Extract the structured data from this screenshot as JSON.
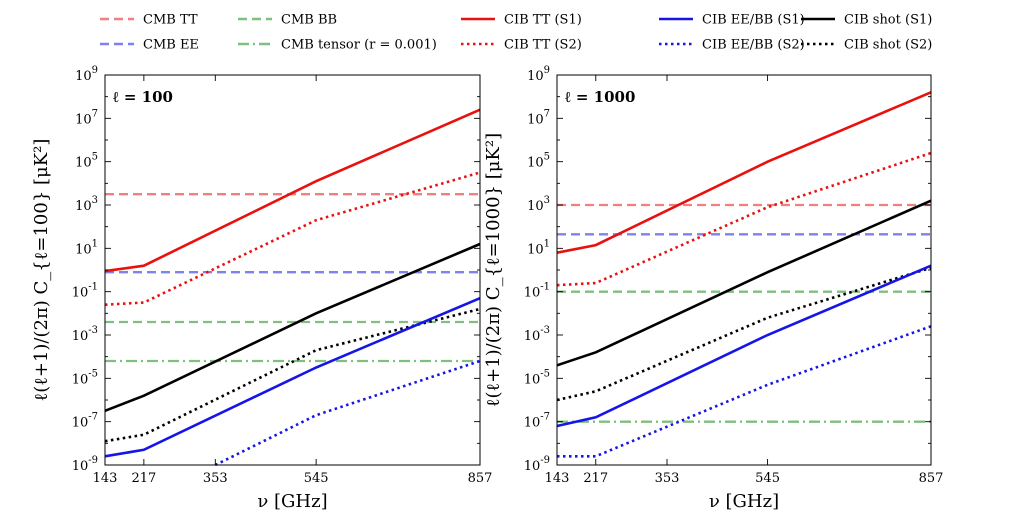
{
  "chart_data": {
    "type": "line",
    "figure_title": "",
    "x_ticks": [
      143,
      217,
      353,
      545,
      857
    ],
    "xlim": [
      143,
      857
    ],
    "ylim_exponent": [
      -9,
      9
    ],
    "y_tick_base": "10",
    "y_tick_exponents": [
      -9,
      -7,
      -5,
      -3,
      -1,
      1,
      3,
      5,
      7,
      9
    ],
    "xlabel": "ν [GHz]",
    "legend": [
      {
        "id": "cmb_tt",
        "label": "CMB TT",
        "color": "#f08080",
        "dash": "dashed"
      },
      {
        "id": "cmb_ee",
        "label": "CMB EE",
        "color": "#8080f0",
        "dash": "dashed"
      },
      {
        "id": "cmb_bb",
        "label": "CMB BB",
        "color": "#7fbf7f",
        "dash": "dashed"
      },
      {
        "id": "cmb_tensor",
        "label": "CMB tensor (r = 0.001)",
        "color": "#7fbf7f",
        "dash": "dashdot"
      },
      {
        "id": "cib_tt_s1",
        "label": "CIB TT (S1)",
        "color": "#e8110f",
        "dash": "solid"
      },
      {
        "id": "cib_tt_s2",
        "label": "CIB TT (S2)",
        "color": "#e8110f",
        "dash": "dotted"
      },
      {
        "id": "cib_eebb_s1",
        "label": "CIB EE/BB (S1)",
        "color": "#1515e8",
        "dash": "solid"
      },
      {
        "id": "cib_eebb_s2",
        "label": "CIB EE/BB (S2)",
        "color": "#1515e8",
        "dash": "dotted"
      },
      {
        "id": "cib_shot_s1",
        "label": "CIB shot (S1)",
        "color": "#000000",
        "dash": "solid"
      },
      {
        "id": "cib_shot_s2",
        "label": "CIB shot (S2)",
        "color": "#000000",
        "dash": "dotted"
      }
    ],
    "panels": [
      {
        "ell_label": "ℓ = 100",
        "ylabel": "ℓ(ℓ+1)/(2π) C_{ℓ=100} [μK²]",
        "series": [
          {
            "id": "cmb_tt",
            "x": [
              143,
              857
            ],
            "log10_y": [
              3.5,
              3.5
            ]
          },
          {
            "id": "cmb_ee",
            "x": [
              143,
              857
            ],
            "log10_y": [
              -0.1,
              -0.1
            ]
          },
          {
            "id": "cmb_bb",
            "x": [
              143,
              857
            ],
            "log10_y": [
              -2.4,
              -2.4
            ]
          },
          {
            "id": "cmb_tensor",
            "x": [
              143,
              857
            ],
            "log10_y": [
              -4.2,
              -4.2
            ]
          },
          {
            "id": "cib_tt_s1",
            "x": [
              143,
              217,
              545,
              857
            ],
            "log10_y": [
              -0.05,
              0.2,
              4.1,
              7.4
            ]
          },
          {
            "id": "cib_tt_s2",
            "x": [
              143,
              217,
              545,
              857
            ],
            "log10_y": [
              -1.6,
              -1.5,
              2.3,
              4.5
            ]
          },
          {
            "id": "cib_shot_s1",
            "x": [
              143,
              217,
              545,
              857
            ],
            "log10_y": [
              -6.5,
              -5.8,
              -2.0,
              1.2
            ]
          },
          {
            "id": "cib_shot_s2",
            "x": [
              143,
              217,
              545,
              857
            ],
            "log10_y": [
              -7.9,
              -7.6,
              -3.7,
              -1.8
            ]
          },
          {
            "id": "cib_eebb_s1",
            "x": [
              143,
              217,
              545,
              857
            ],
            "log10_y": [
              -8.6,
              -8.3,
              -4.5,
              -1.3
            ]
          },
          {
            "id": "cib_eebb_s2",
            "x": [
              353,
              545,
              857
            ],
            "log10_y": [
              -9.0,
              -6.7,
              -4.2
            ]
          }
        ]
      },
      {
        "ell_label": "ℓ = 1000",
        "ylabel": "ℓ(ℓ+1)/(2π) C_{ℓ=1000} [μK²]",
        "series": [
          {
            "id": "cmb_tt",
            "x": [
              143,
              857
            ],
            "log10_y": [
              3.0,
              3.0
            ]
          },
          {
            "id": "cmb_ee",
            "x": [
              143,
              857
            ],
            "log10_y": [
              1.65,
              1.65
            ]
          },
          {
            "id": "cmb_bb",
            "x": [
              143,
              857
            ],
            "log10_y": [
              -1.0,
              -1.0
            ]
          },
          {
            "id": "cmb_tensor",
            "x": [
              143,
              857
            ],
            "log10_y": [
              -7.0,
              -7.0
            ]
          },
          {
            "id": "cib_tt_s1",
            "x": [
              143,
              217,
              545,
              857
            ],
            "log10_y": [
              0.8,
              1.15,
              5.0,
              8.2
            ]
          },
          {
            "id": "cib_tt_s2",
            "x": [
              143,
              217,
              545,
              857
            ],
            "log10_y": [
              -0.7,
              -0.6,
              2.9,
              5.4
            ]
          },
          {
            "id": "cib_shot_s1",
            "x": [
              143,
              217,
              545,
              857
            ],
            "log10_y": [
              -4.4,
              -3.8,
              -0.1,
              3.2
            ]
          },
          {
            "id": "cib_shot_s2",
            "x": [
              143,
              217,
              545,
              857
            ],
            "log10_y": [
              -6.0,
              -5.6,
              -2.2,
              0.1
            ]
          },
          {
            "id": "cib_eebb_s1",
            "x": [
              143,
              217,
              545,
              857
            ],
            "log10_y": [
              -7.2,
              -6.8,
              -3.0,
              0.2
            ]
          },
          {
            "id": "cib_eebb_s2",
            "x": [
              143,
              217,
              545,
              857
            ],
            "log10_y": [
              -8.6,
              -8.6,
              -5.3,
              -2.6
            ]
          }
        ]
      }
    ]
  }
}
